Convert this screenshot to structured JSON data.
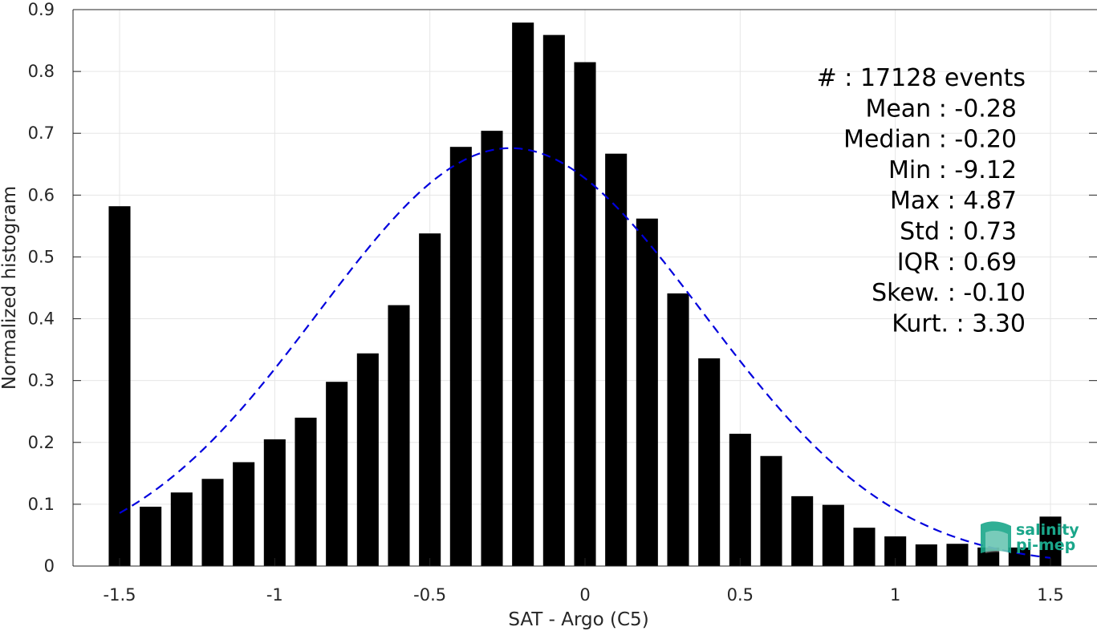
{
  "chart_data": {
    "type": "bar",
    "xlabel": "SAT - Argo (C5)",
    "ylabel": "Normalized histogram",
    "xlim": [
      -1.65,
      1.65
    ],
    "ylim": [
      0,
      0.9
    ],
    "xticks": [
      "-1.5",
      "-1",
      "-0.5",
      "0",
      "0.5",
      "1",
      "1.5"
    ],
    "xtick_values": [
      -1.5,
      -1,
      -0.5,
      0,
      0.5,
      1,
      1.5
    ],
    "yticks": [
      "0",
      "0.1",
      "0.2",
      "0.3",
      "0.4",
      "0.5",
      "0.6",
      "0.7",
      "0.8",
      "0.9"
    ],
    "ytick_values": [
      0,
      0.1,
      0.2,
      0.3,
      0.4,
      0.5,
      0.6,
      0.7,
      0.8,
      0.9
    ],
    "grid": true,
    "bar_color": "#000000",
    "bars": {
      "x": [
        -1.5,
        -1.4,
        -1.3,
        -1.2,
        -1.1,
        -1.0,
        -0.9,
        -0.8,
        -0.7,
        -0.6,
        -0.5,
        -0.4,
        -0.3,
        -0.2,
        -0.1,
        0.0,
        0.1,
        0.2,
        0.3,
        0.4,
        0.5,
        0.6,
        0.7,
        0.8,
        0.9,
        1.0,
        1.1,
        1.2,
        1.3,
        1.4,
        1.5
      ],
      "values": [
        0.582,
        0.096,
        0.119,
        0.141,
        0.168,
        0.205,
        0.24,
        0.298,
        0.344,
        0.422,
        0.538,
        0.678,
        0.704,
        0.879,
        0.859,
        0.815,
        0.667,
        0.562,
        0.441,
        0.336,
        0.214,
        0.178,
        0.113,
        0.099,
        0.062,
        0.048,
        0.035,
        0.036,
        0.03,
        0.03,
        0.08
      ]
    },
    "fit_curve": {
      "style": "dashed",
      "color": "#0000dd",
      "mean": -0.24,
      "std": 0.62,
      "peak": 0.676,
      "x_range": [
        -1.5,
        1.5
      ]
    },
    "stats": [
      "#  : 17128 events",
      "Mean : -0.28",
      "Median : -0.20",
      "Min : -9.12",
      "Max : 4.87",
      "Std : 0.73",
      "IQR : 0.69",
      "Skew. : -0.10",
      "Kurt. : 3.30"
    ],
    "logo": {
      "line1": "salinity",
      "line2": "pi-mep",
      "color": "#1aa68a"
    }
  }
}
